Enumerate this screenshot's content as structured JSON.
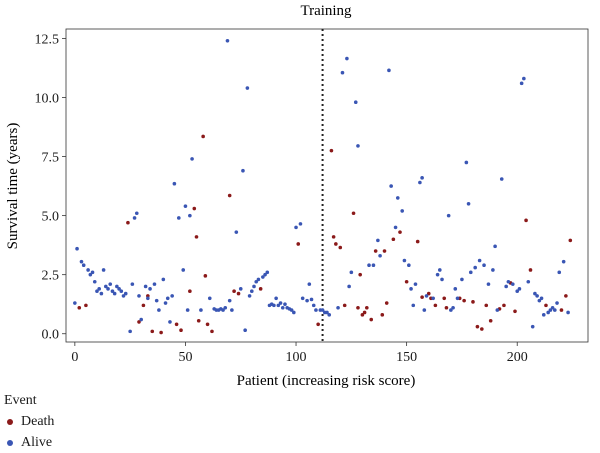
{
  "chart_data": {
    "type": "scatter",
    "title": "Training",
    "xlabel": "Patient (increasing risk score)",
    "ylabel": "Survival time (years)",
    "xlim": [
      -4,
      232
    ],
    "ylim": [
      -0.35,
      12.9
    ],
    "xticks": [
      0,
      50,
      100,
      150,
      200
    ],
    "yticks": [
      0.0,
      2.5,
      5.0,
      7.5,
      10.0,
      12.5
    ],
    "ytick_labels": [
      "0.0",
      "2.5",
      "5.0",
      "7.5",
      "10.0",
      "12.5"
    ],
    "cutoff_x": 112,
    "grid": false,
    "legend_title": "Event",
    "legend_position": "bottom-left",
    "series": [
      {
        "name": "Death",
        "color": "#8b1a1a",
        "points": [
          [
            2,
            1.1
          ],
          [
            5,
            1.2
          ],
          [
            24,
            4.7
          ],
          [
            29,
            0.5
          ],
          [
            31,
            1.2
          ],
          [
            33,
            1.6
          ],
          [
            35,
            0.1
          ],
          [
            39,
            0.05
          ],
          [
            46,
            0.4
          ],
          [
            48,
            0.15
          ],
          [
            52,
            1.8
          ],
          [
            54,
            5.3
          ],
          [
            55,
            4.1
          ],
          [
            56,
            0.55
          ],
          [
            58,
            8.35
          ],
          [
            59,
            2.45
          ],
          [
            60,
            0.4
          ],
          [
            62,
            0.1
          ],
          [
            70,
            5.85
          ],
          [
            72,
            1.8
          ],
          [
            74,
            1.7
          ],
          [
            84,
            1.9
          ],
          [
            101,
            3.8
          ],
          [
            110,
            0.4
          ],
          [
            116,
            7.75
          ],
          [
            117,
            4.1
          ],
          [
            118,
            3.8
          ],
          [
            120,
            3.65
          ],
          [
            122,
            1.2
          ],
          [
            126,
            5.1
          ],
          [
            128,
            1.1
          ],
          [
            129,
            2.5
          ],
          [
            130,
            0.8
          ],
          [
            131,
            0.9
          ],
          [
            132,
            1.1
          ],
          [
            134,
            0.6
          ],
          [
            136,
            3.5
          ],
          [
            139,
            0.8
          ],
          [
            140,
            3.5
          ],
          [
            141,
            1.3
          ],
          [
            144,
            4.0
          ],
          [
            147,
            4.3
          ],
          [
            150,
            2.2
          ],
          [
            155,
            3.9
          ],
          [
            157,
            1.55
          ],
          [
            160,
            1.7
          ],
          [
            161,
            1.5
          ],
          [
            163,
            1.2
          ],
          [
            167,
            1.5
          ],
          [
            168,
            1.1
          ],
          [
            174,
            1.5
          ],
          [
            176,
            1.4
          ],
          [
            180,
            1.35
          ],
          [
            182,
            0.3
          ],
          [
            184,
            0.2
          ],
          [
            186,
            1.2
          ],
          [
            188,
            0.55
          ],
          [
            192,
            1.05
          ],
          [
            194,
            1.2
          ],
          [
            197,
            2.15
          ],
          [
            199,
            0.95
          ],
          [
            204,
            4.8
          ],
          [
            206,
            2.7
          ],
          [
            213,
            1.2
          ],
          [
            220,
            1.0
          ],
          [
            222,
            1.6
          ],
          [
            224,
            3.95
          ]
        ]
      },
      {
        "name": "Alive",
        "color": "#3a56b4",
        "points": [
          [
            0,
            1.3
          ],
          [
            1,
            3.6
          ],
          [
            3,
            3.05
          ],
          [
            4,
            2.9
          ],
          [
            6,
            2.7
          ],
          [
            7,
            2.5
          ],
          [
            8,
            2.6
          ],
          [
            9,
            2.2
          ],
          [
            10,
            1.8
          ],
          [
            11,
            1.9
          ],
          [
            12,
            1.7
          ],
          [
            13,
            2.7
          ],
          [
            14,
            2.0
          ],
          [
            15,
            1.9
          ],
          [
            16,
            2.1
          ],
          [
            17,
            1.8
          ],
          [
            18,
            1.7
          ],
          [
            19,
            2.0
          ],
          [
            20,
            1.9
          ],
          [
            21,
            1.8
          ],
          [
            22,
            1.6
          ],
          [
            23,
            1.7
          ],
          [
            25,
            0.1
          ],
          [
            26,
            2.1
          ],
          [
            27,
            4.9
          ],
          [
            28,
            5.1
          ],
          [
            29,
            1.6
          ],
          [
            30,
            0.6
          ],
          [
            32,
            2.0
          ],
          [
            33,
            1.5
          ],
          [
            34,
            1.9
          ],
          [
            36,
            2.1
          ],
          [
            37,
            1.4
          ],
          [
            38,
            1.0
          ],
          [
            40,
            2.3
          ],
          [
            41,
            1.3
          ],
          [
            42,
            1.5
          ],
          [
            43,
            0.5
          ],
          [
            44,
            1.6
          ],
          [
            45,
            6.35
          ],
          [
            47,
            4.9
          ],
          [
            49,
            2.7
          ],
          [
            50,
            5.4
          ],
          [
            51,
            1.0
          ],
          [
            52,
            5.0
          ],
          [
            53,
            7.4
          ],
          [
            57,
            1.0
          ],
          [
            61,
            1.5
          ],
          [
            63,
            1.05
          ],
          [
            64,
            1.0
          ],
          [
            65,
            1.0
          ],
          [
            66,
            1.05
          ],
          [
            67,
            1.0
          ],
          [
            68,
            1.1
          ],
          [
            69,
            12.4
          ],
          [
            70,
            1.4
          ],
          [
            71,
            1.0
          ],
          [
            73,
            4.3
          ],
          [
            75,
            1.9
          ],
          [
            76,
            6.9
          ],
          [
            77,
            0.15
          ],
          [
            78,
            10.4
          ],
          [
            79,
            1.6
          ],
          [
            80,
            1.8
          ],
          [
            81,
            2.0
          ],
          [
            82,
            2.2
          ],
          [
            83,
            2.3
          ],
          [
            85,
            2.4
          ],
          [
            86,
            2.5
          ],
          [
            87,
            2.6
          ],
          [
            88,
            1.2
          ],
          [
            89,
            1.25
          ],
          [
            90,
            1.2
          ],
          [
            91,
            1.5
          ],
          [
            92,
            1.2
          ],
          [
            93,
            1.3
          ],
          [
            94,
            1.1
          ],
          [
            95,
            1.25
          ],
          [
            96,
            1.1
          ],
          [
            97,
            1.05
          ],
          [
            98,
            1.0
          ],
          [
            99,
            0.9
          ],
          [
            100,
            4.5
          ],
          [
            102,
            4.65
          ],
          [
            103,
            1.5
          ],
          [
            105,
            1.4
          ],
          [
            106,
            2.1
          ],
          [
            107,
            1.45
          ],
          [
            108,
            1.2
          ],
          [
            109,
            1.0
          ],
          [
            111,
            1.0
          ],
          [
            112,
            1.0
          ],
          [
            113,
            0.9
          ],
          [
            114,
            0.9
          ],
          [
            115,
            0.8
          ],
          [
            119,
            1.1
          ],
          [
            121,
            11.05
          ],
          [
            123,
            11.65
          ],
          [
            124,
            2.0
          ],
          [
            125,
            2.6
          ],
          [
            127,
            9.8
          ],
          [
            128,
            7.95
          ],
          [
            133,
            2.9
          ],
          [
            135,
            2.9
          ],
          [
            137,
            3.95
          ],
          [
            138,
            3.3
          ],
          [
            142,
            11.15
          ],
          [
            143,
            6.25
          ],
          [
            145,
            4.5
          ],
          [
            146,
            5.75
          ],
          [
            148,
            5.2
          ],
          [
            149,
            3.1
          ],
          [
            151,
            2.9
          ],
          [
            152,
            1.9
          ],
          [
            153,
            1.2
          ],
          [
            154,
            2.1
          ],
          [
            156,
            6.4
          ],
          [
            157,
            6.6
          ],
          [
            158,
            1.0
          ],
          [
            159,
            1.6
          ],
          [
            162,
            1.5
          ],
          [
            164,
            2.5
          ],
          [
            165,
            2.7
          ],
          [
            166,
            2.3
          ],
          [
            169,
            5.0
          ],
          [
            170,
            1.0
          ],
          [
            171,
            1.1
          ],
          [
            172,
            1.9
          ],
          [
            173,
            1.5
          ],
          [
            175,
            2.3
          ],
          [
            177,
            7.25
          ],
          [
            178,
            5.5
          ],
          [
            179,
            2.6
          ],
          [
            181,
            2.8
          ],
          [
            183,
            3.1
          ],
          [
            185,
            2.9
          ],
          [
            187,
            2.1
          ],
          [
            189,
            2.7
          ],
          [
            190,
            3.7
          ],
          [
            191,
            1.0
          ],
          [
            193,
            6.55
          ],
          [
            195,
            2.0
          ],
          [
            196,
            2.2
          ],
          [
            198,
            2.1
          ],
          [
            200,
            1.8
          ],
          [
            201,
            1.9
          ],
          [
            202,
            10.6
          ],
          [
            203,
            10.8
          ],
          [
            205,
            2.2
          ],
          [
            207,
            0.3
          ],
          [
            208,
            1.7
          ],
          [
            209,
            1.6
          ],
          [
            210,
            1.4
          ],
          [
            211,
            1.5
          ],
          [
            212,
            0.8
          ],
          [
            214,
            0.9
          ],
          [
            215,
            1.0
          ],
          [
            216,
            1.1
          ],
          [
            217,
            1.0
          ],
          [
            218,
            1.3
          ],
          [
            219,
            2.6
          ],
          [
            221,
            3.05
          ],
          [
            223,
            0.9
          ]
        ]
      }
    ]
  }
}
